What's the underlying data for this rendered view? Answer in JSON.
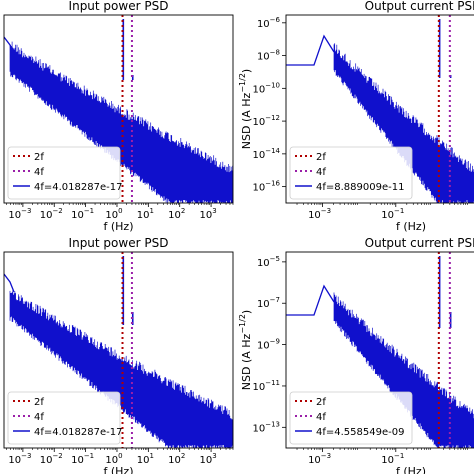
{
  "chart_data": [
    {
      "type": "line",
      "title": "Input power PSD",
      "xlabel": "f (Hz)",
      "ylabel": "",
      "x_scale": "log",
      "xlim": [
        0.00025,
        5000
      ],
      "x_ticks": [
        {
          "value": 0.001,
          "base": "10",
          "exp": "−3"
        },
        {
          "value": 0.01,
          "base": "10",
          "exp": "−2"
        },
        {
          "value": 0.1,
          "base": "10",
          "exp": "−1"
        },
        {
          "value": 1,
          "base": "10",
          "exp": "0"
        },
        {
          "value": 10,
          "base": "10",
          "exp": "1"
        },
        {
          "value": 100,
          "base": "10",
          "exp": "2"
        },
        {
          "value": 1000,
          "base": "10",
          "exp": "3"
        }
      ],
      "y_ticks": [],
      "markers": [
        {
          "name": "2f",
          "x": 1.5,
          "color": "#b00000"
        },
        {
          "name": "4f",
          "x": 3.0,
          "color": "#9a1fa8"
        }
      ],
      "series": [
        {
          "name": "4f=4.018287e-17",
          "color": "#1010cc"
        }
      ],
      "legend": "bottom-left",
      "legend_entries": [
        "2f",
        "4f",
        "4f=4.018287e-17"
      ]
    },
    {
      "type": "line",
      "title": "Output current PSD",
      "xlabel": "f (Hz)",
      "ylabel": "NSD (A Hz",
      "ylabel_exp": "−1/2",
      "ylabel_close": ")",
      "x_scale": "log",
      "y_scale": "log",
      "xlim": [
        0.0001,
        20
      ],
      "ylim": [
        1e-17,
        3e-06
      ],
      "x_ticks": [
        {
          "value": 0.001,
          "base": "10",
          "exp": "−3"
        },
        {
          "value": 0.1,
          "base": "10",
          "exp": "−1"
        }
      ],
      "y_ticks": [
        {
          "value": 1e-06,
          "base": "10",
          "exp": "−6"
        },
        {
          "value": 1e-08,
          "base": "10",
          "exp": "−8"
        },
        {
          "value": 1e-10,
          "base": "10",
          "exp": "−10"
        },
        {
          "value": 1e-12,
          "base": "10",
          "exp": "−12"
        },
        {
          "value": 1e-14,
          "base": "10",
          "exp": "−14"
        },
        {
          "value": 1e-16,
          "base": "10",
          "exp": "−16"
        }
      ],
      "markers": [
        {
          "name": "2f",
          "x": 1.5,
          "color": "#b00000"
        },
        {
          "name": "4f",
          "x": 3.0,
          "color": "#9a1fa8"
        }
      ],
      "series": [
        {
          "name": "4f=8.889009e-11",
          "color": "#1010cc"
        }
      ],
      "legend": "bottom-left",
      "legend_entries": [
        "2f",
        "4f",
        "4f=8.889009e-11"
      ]
    },
    {
      "type": "line",
      "title": "Input power PSD",
      "xlabel": "f (Hz)",
      "ylabel": "",
      "x_scale": "log",
      "xlim": [
        0.00025,
        5000
      ],
      "x_ticks": [
        {
          "value": 0.001,
          "base": "10",
          "exp": "−3"
        },
        {
          "value": 0.01,
          "base": "10",
          "exp": "−2"
        },
        {
          "value": 0.1,
          "base": "10",
          "exp": "−1"
        },
        {
          "value": 1,
          "base": "10",
          "exp": "0"
        },
        {
          "value": 10,
          "base": "10",
          "exp": "1"
        },
        {
          "value": 100,
          "base": "10",
          "exp": "2"
        },
        {
          "value": 1000,
          "base": "10",
          "exp": "3"
        }
      ],
      "y_ticks": [],
      "markers": [
        {
          "name": "2f",
          "x": 1.5,
          "color": "#b00000"
        },
        {
          "name": "4f",
          "x": 3.0,
          "color": "#9a1fa8"
        }
      ],
      "series": [
        {
          "name": "4f=4.018287e-17",
          "color": "#1010cc"
        }
      ],
      "legend": "bottom-left",
      "legend_entries": [
        "2f",
        "4f",
        "4f=4.018287e-17"
      ]
    },
    {
      "type": "line",
      "title": "Output current PSD",
      "xlabel": "f (Hz)",
      "ylabel": "NSD (A Hz",
      "ylabel_exp": "−1/2",
      "ylabel_close": ")",
      "x_scale": "log",
      "y_scale": "log",
      "xlim": [
        0.0001,
        20
      ],
      "ylim": [
        1e-14,
        3e-05
      ],
      "x_ticks": [
        {
          "value": 0.001,
          "base": "10",
          "exp": "−3"
        },
        {
          "value": 0.1,
          "base": "10",
          "exp": "−1"
        }
      ],
      "y_ticks": [
        {
          "value": 1e-05,
          "base": "10",
          "exp": "−5"
        },
        {
          "value": 1e-07,
          "base": "10",
          "exp": "−7"
        },
        {
          "value": 1e-09,
          "base": "10",
          "exp": "−9"
        },
        {
          "value": 1e-11,
          "base": "10",
          "exp": "−11"
        },
        {
          "value": 1e-13,
          "base": "10",
          "exp": "−13"
        }
      ],
      "markers": [
        {
          "name": "2f",
          "x": 1.5,
          "color": "#b00000"
        },
        {
          "name": "4f",
          "x": 3.0,
          "color": "#9a1fa8"
        }
      ],
      "series": [
        {
          "name": "4f=4.558549e-09",
          "color": "#1010cc"
        }
      ],
      "legend": "bottom-left",
      "legend_entries": [
        "2f",
        "4f",
        "4f=4.558549e-09"
      ]
    }
  ]
}
